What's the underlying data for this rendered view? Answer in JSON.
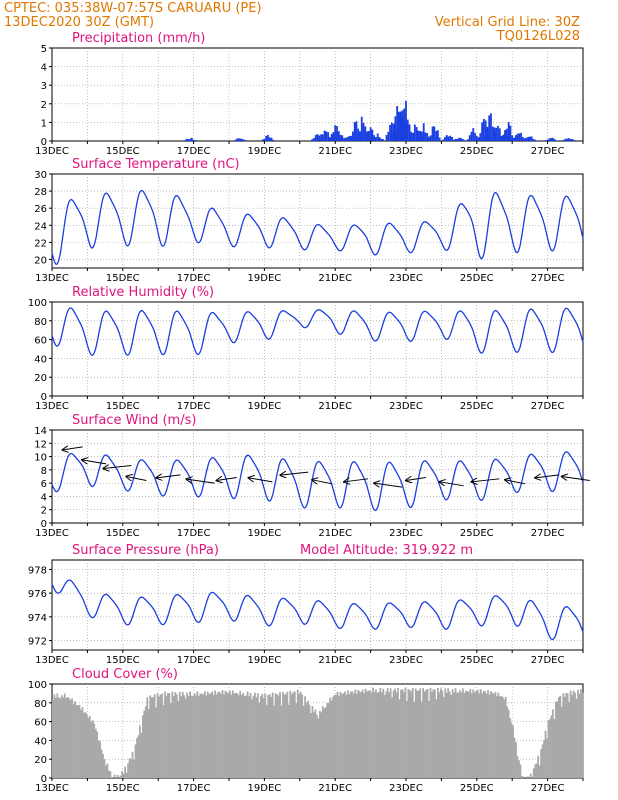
{
  "header": {
    "line1_left": "CPTEC:  035:38W-07:57S  CARUARU (PE)",
    "line2_left": "13DEC2020 30Z (GMT)",
    "line1_right": "Vertical Grid Line: 30Z",
    "line2_right": "TQ0126L028"
  },
  "colors": {
    "line": "#1a3fe0",
    "bar": "#1a3fe0",
    "cloud": "#a9a9a9",
    "title": "#e0147d",
    "header": "#e07800"
  },
  "x_axis": {
    "tick_labels": [
      "13DEC",
      "15DEC",
      "17DEC",
      "19DEC",
      "21DEC",
      "23DEC",
      "25DEC",
      "27DEC"
    ],
    "days": 15
  },
  "chart_data": [
    {
      "type": "bar",
      "title": "Precipitation (mm/h)",
      "ylim": [
        0,
        5
      ],
      "yticks": [
        0,
        1,
        2,
        3,
        4,
        5
      ],
      "grid": true,
      "series": [
        {
          "events": [
            [
              3.9,
              0.2
            ],
            [
              5.3,
              0.2
            ],
            [
              6.1,
              0.3
            ],
            [
              7.5,
              0.4
            ],
            [
              7.7,
              0.8
            ],
            [
              8.0,
              0.9
            ],
            [
              8.1,
              0.6
            ],
            [
              8.4,
              0.4
            ],
            [
              8.6,
              1.2
            ],
            [
              8.8,
              1.6
            ],
            [
              9.0,
              0.9
            ],
            [
              9.2,
              0.4
            ],
            [
              9.6,
              1.5
            ],
            [
              9.8,
              2.3
            ],
            [
              9.9,
              2.6
            ],
            [
              10.0,
              1.9
            ],
            [
              10.3,
              1.2
            ],
            [
              10.5,
              0.8
            ],
            [
              10.8,
              1.0
            ],
            [
              11.2,
              0.4
            ],
            [
              11.5,
              0.2
            ],
            [
              11.9,
              0.6
            ],
            [
              12.2,
              1.3
            ],
            [
              12.4,
              1.6
            ],
            [
              12.6,
              0.9
            ],
            [
              12.8,
              0.5
            ],
            [
              12.9,
              1.0
            ],
            [
              13.2,
              0.6
            ],
            [
              13.5,
              0.3
            ],
            [
              14.1,
              0.2
            ],
            [
              14.6,
              0.2
            ]
          ]
        }
      ]
    },
    {
      "type": "line",
      "title": "Surface Temperature (nC)",
      "ylim": [
        19,
        30
      ],
      "yticks": [
        20,
        22,
        24,
        26,
        28,
        30
      ],
      "grid": true,
      "series": [
        {
          "mean": [
            23.0,
            24.8,
            25.0,
            25.2,
            24.6,
            23.6,
            23.5,
            23.0,
            22.5,
            22.6,
            22.6,
            23.1,
            24.4,
            24.5,
            24.5
          ],
          "amp": [
            3.3,
            3.0,
            2.9,
            3.2,
            2.2,
            1.8,
            1.8,
            1.6,
            1.2,
            1.8,
            1.6,
            1.6,
            3.8,
            3.2,
            3.0
          ]
        }
      ]
    },
    {
      "type": "line",
      "title": "Relative Humidity (%)",
      "ylim": [
        0,
        100
      ],
      "yticks": [
        0,
        20,
        40,
        60,
        80,
        100
      ],
      "grid": true,
      "series": [
        {
          "mean": [
            78,
            69,
            69,
            70,
            68,
            74,
            76,
            83,
            81,
            75,
            75,
            78,
            70,
            71,
            72
          ],
          "amp": [
            20,
            22,
            22,
            22,
            22,
            15,
            15,
            8,
            12,
            14,
            15,
            13,
            21,
            21,
            22
          ]
        }
      ]
    },
    {
      "type": "line",
      "title": "Surface Wind (m/s)",
      "ylim": [
        0,
        14
      ],
      "yticks": [
        0,
        2,
        4,
        6,
        8,
        10,
        12,
        14
      ],
      "grid": true,
      "series": [
        {
          "mean": [
            7.5,
            8.5,
            7.5,
            7.0,
            7.0,
            7.2,
            7.2,
            6.0,
            6.2,
            5.8,
            6.0,
            6.8,
            6.5,
            7.5,
            8.0
          ],
          "amp": [
            2.5,
            2.5,
            2.2,
            2.5,
            2.6,
            3.0,
            3.2,
            3.2,
            3.3,
            3.4,
            3.3,
            2.8,
            2.8,
            2.5,
            2.8
          ],
          "vectors": [
            [
              0.3,
              11.0
            ],
            [
              0.85,
              9.5
            ],
            [
              1.45,
              8.2
            ],
            [
              2.1,
              7.0
            ],
            [
              2.95,
              6.8
            ],
            [
              3.8,
              6.6
            ],
            [
              4.65,
              6.4
            ],
            [
              5.55,
              6.8
            ],
            [
              6.45,
              7.2
            ],
            [
              7.35,
              6.5
            ],
            [
              8.25,
              6.2
            ],
            [
              9.1,
              6.0
            ],
            [
              10.0,
              6.4
            ],
            [
              10.95,
              6.2
            ],
            [
              11.85,
              6.2
            ],
            [
              12.8,
              6.5
            ],
            [
              13.65,
              6.8
            ],
            [
              14.4,
              7.0
            ]
          ]
        }
      ]
    },
    {
      "type": "line",
      "title": "Surface Pressure (hPa)",
      "annotation": "Model Altitude: 319.922 m",
      "ylim": [
        971.2,
        978.8
      ],
      "yticks": [
        972,
        974,
        976,
        978
      ],
      "grid": true,
      "series": [
        {
          "mean": [
            977.3,
            975.2,
            974.6,
            974.6,
            974.9,
            975.0,
            974.5,
            974.6,
            974.2,
            974.1,
            974.3,
            974.2,
            974.5,
            974.8,
            973.6
          ],
          "amp": [
            0.8,
            1.0,
            1.1,
            1.1,
            1.2,
            1.1,
            1.1,
            1.0,
            1.0,
            1.0,
            1.0,
            1.1,
            1.1,
            1.2,
            1.3
          ]
        }
      ]
    },
    {
      "type": "area",
      "title": "Cloud Cover (%)",
      "ylim": [
        0,
        100
      ],
      "yticks": [
        0,
        20,
        40,
        60,
        80,
        100
      ],
      "grid": true,
      "series": [
        {
          "x": [
            0,
            0.4,
            0.8,
            1.2,
            1.5,
            1.7,
            1.8,
            2.0,
            2.3,
            2.7,
            3.2,
            4,
            5,
            6,
            7,
            7.5,
            8,
            9,
            10,
            11,
            12,
            12.5,
            12.8,
            13.0,
            13.2,
            13.3,
            13.5,
            13.8,
            14.0,
            14.3,
            14.6,
            15
          ],
          "values": [
            90,
            90,
            78,
            60,
            20,
            5,
            3,
            8,
            30,
            88,
            92,
            92,
            94,
            90,
            94,
            70,
            92,
            96,
            96,
            96,
            95,
            93,
            88,
            60,
            20,
            2,
            3,
            30,
            60,
            88,
            93,
            95
          ]
        }
      ]
    }
  ]
}
